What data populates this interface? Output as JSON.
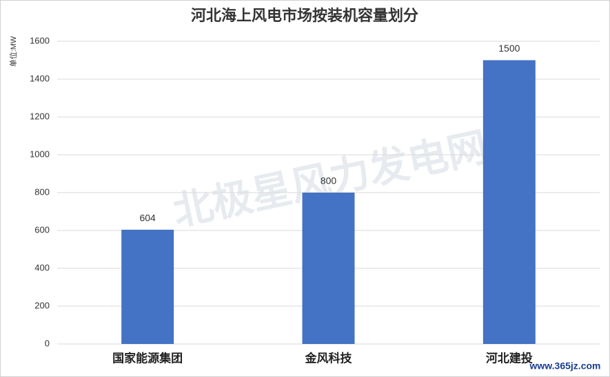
{
  "chart_data": {
    "type": "bar",
    "title": "河北海上风电市场按装机容量划分",
    "y_label": "单位:MW",
    "categories": [
      "国家能源集团",
      "金风科技",
      "河北建投"
    ],
    "values": [
      604,
      800,
      1500
    ],
    "color": "#4472c4",
    "ylim": [
      0,
      1600
    ],
    "yticks": [
      0,
      200,
      400,
      600,
      800,
      1000,
      1200,
      1400,
      1600
    ],
    "grid": true,
    "watermark": "北极星风力发电网",
    "site_watermark": "www.365jz.com"
  }
}
